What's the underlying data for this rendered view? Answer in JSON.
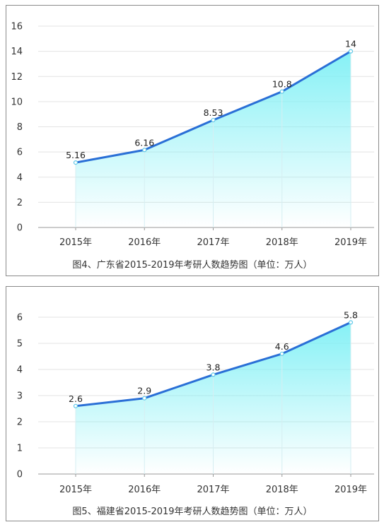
{
  "chart_data": [
    {
      "type": "area",
      "title": "图4、广东省2015-2019年考研人数趋势图（单位：万人）",
      "categories": [
        "2015年",
        "2016年",
        "2017年",
        "2018年",
        "2019年"
      ],
      "series": [
        {
          "values": [
            5.16,
            6.16,
            8.53,
            10.8,
            14
          ]
        }
      ],
      "data_labels": [
        "5.16",
        "6.16",
        "8.53",
        "10.8",
        "14"
      ],
      "ylim": [
        0,
        16
      ],
      "yticks": [
        0,
        2,
        4,
        6,
        8,
        10,
        12,
        14,
        16
      ],
      "grid": true,
      "line_color": "#2a6fd6",
      "fill_color": "#7ff0f5"
    },
    {
      "type": "area",
      "title": "图5、福建省2015-2019年考研人数趋势图（单位：万人）",
      "categories": [
        "2015年",
        "2016年",
        "2017年",
        "2018年",
        "2019年"
      ],
      "series": [
        {
          "values": [
            2.6,
            2.9,
            3.8,
            4.6,
            5.8
          ]
        }
      ],
      "data_labels": [
        "2.6",
        "2.9",
        "3.8",
        "4.6",
        "5.8"
      ],
      "ylim": [
        0,
        6
      ],
      "yticks": [
        0,
        1,
        2,
        3,
        4,
        5,
        6
      ],
      "grid": true,
      "line_color": "#2a6fd6",
      "fill_color": "#7ff0f5"
    }
  ]
}
